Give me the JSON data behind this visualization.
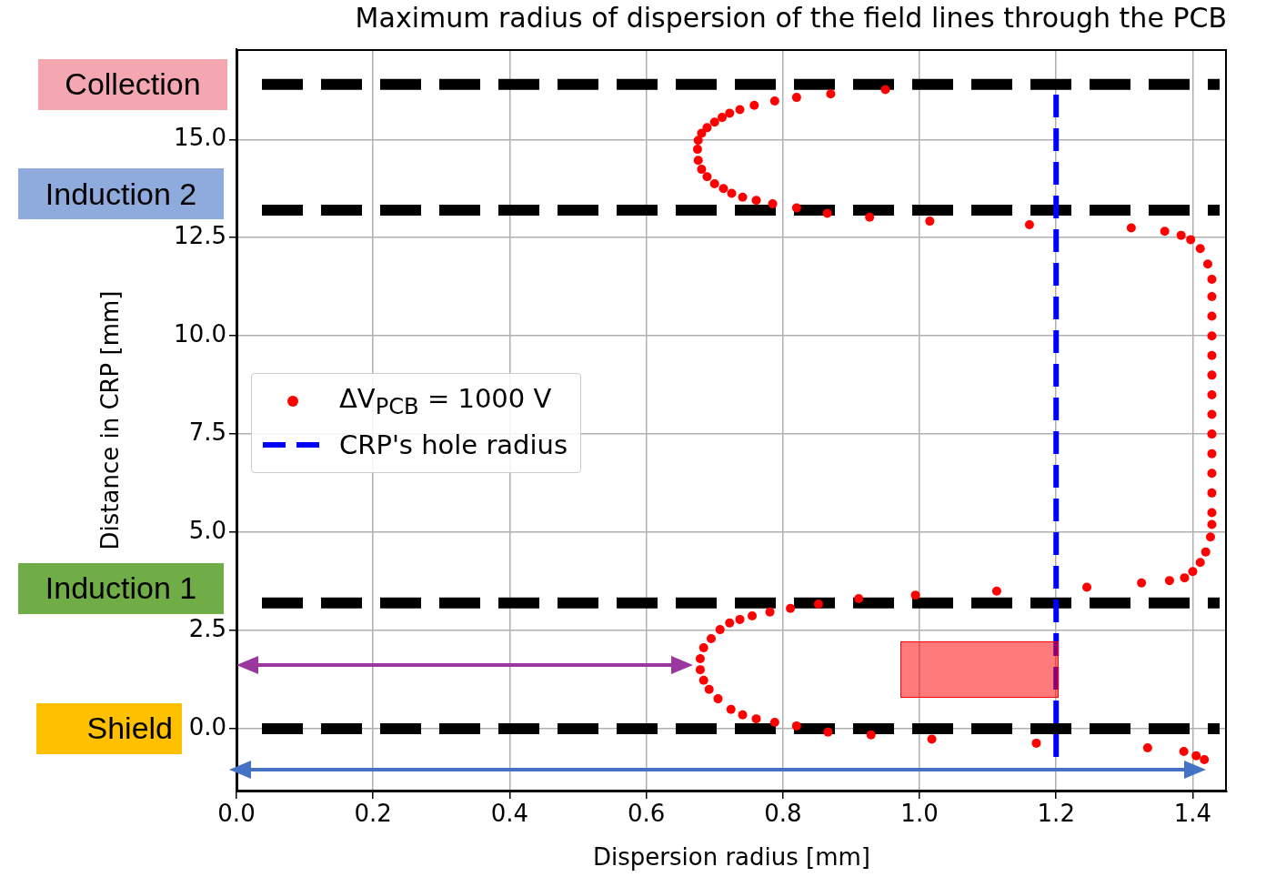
{
  "chart_data": {
    "type": "scatter",
    "title": "Maximum radius of dispersion of the field lines through the PCB",
    "xlabel": "Dispersion radius [mm]",
    "ylabel": "Distance in CRP [mm]",
    "xlim": [
      0,
      1.45
    ],
    "ylim": [
      -1.6,
      17.3
    ],
    "xticks": [
      {
        "value": 0,
        "label": "0.0"
      },
      {
        "value": 0.2,
        "label": "0.2"
      },
      {
        "value": 0.4,
        "label": "0.4"
      },
      {
        "value": 0.6,
        "label": "0.6"
      },
      {
        "value": 0.8,
        "label": "0.8"
      },
      {
        "value": 1,
        "label": "1.0"
      },
      {
        "value": 1.2,
        "label": "1.2"
      },
      {
        "value": 1.4,
        "label": "1.4"
      }
    ],
    "yticks": [
      {
        "value": 0,
        "label": "0.0"
      },
      {
        "value": 2.5,
        "label": "2.5"
      },
      {
        "value": 5,
        "label": "5.0"
      },
      {
        "value": 7.5,
        "label": "7.5"
      },
      {
        "value": 10,
        "label": "10.0"
      },
      {
        "value": 12.5,
        "label": "12.5"
      },
      {
        "value": 15,
        "label": "15.0"
      }
    ],
    "grid": true,
    "legend": "left",
    "ref_lines": [
      {
        "axis": "y",
        "value": 16.4,
        "label": "Collection",
        "color": "#000000",
        "line_style": "dashed"
      },
      {
        "axis": "y",
        "value": 13.2,
        "label": "Induction 2",
        "color": "#000000",
        "line_style": "dashed"
      },
      {
        "axis": "y",
        "value": 3.2,
        "label": "Induction 1",
        "color": "#000000",
        "line_style": "dashed"
      },
      {
        "axis": "y",
        "value": 0,
        "label": "Shield",
        "color": "#000000",
        "line_style": "dashed"
      }
    ],
    "series": [
      {
        "name": "ΔV$_{PCB}$ = 1000 V",
        "type": "scatter",
        "color": "#ff0000",
        "marker": "circle",
        "x": [
          0.95,
          0.87,
          0.82,
          0.788,
          0.758,
          0.737,
          0.722,
          0.711,
          0.7,
          0.689,
          0.681,
          0.676,
          0.675,
          0.676,
          0.681,
          0.689,
          0.7,
          0.713,
          0.725,
          0.741,
          0.761,
          0.785,
          0.82,
          0.865,
          0.927,
          1.015,
          1.161,
          1.31,
          1.359,
          1.383,
          1.397,
          1.411,
          1.422,
          1.428,
          1.428,
          1.428,
          1.428,
          1.428,
          1.428,
          1.428,
          1.428,
          1.428,
          1.428,
          1.428,
          1.428,
          1.428,
          1.428,
          1.426,
          1.419,
          1.411,
          1.4,
          1.388,
          1.366,
          1.325,
          1.245,
          1.113,
          0.994,
          0.911,
          0.852,
          0.811,
          0.781,
          0.755,
          0.737,
          0.722,
          0.708,
          0.695,
          0.684,
          0.679,
          0.679,
          0.684,
          0.692,
          0.705,
          0.724,
          0.741,
          0.761,
          0.788,
          0.82,
          0.866,
          0.929,
          1.018,
          1.171,
          1.334,
          1.387,
          1.405,
          1.417
        ],
        "values": [
          16.27,
          16.16,
          16.07,
          15.98,
          15.87,
          15.76,
          15.67,
          15.56,
          15.44,
          15.3,
          15.16,
          14.98,
          14.75,
          14.47,
          14.24,
          14.05,
          13.87,
          13.75,
          13.63,
          13.53,
          13.45,
          13.36,
          13.26,
          13.12,
          13.02,
          12.92,
          12.83,
          12.75,
          12.66,
          12.56,
          12.45,
          12.22,
          11.83,
          11.44,
          11.0,
          10.5,
          10.0,
          9.5,
          9.0,
          8.5,
          8.0,
          7.5,
          7.0,
          6.5,
          6.0,
          5.5,
          5.2,
          4.88,
          4.5,
          4.23,
          4.0,
          3.84,
          3.77,
          3.71,
          3.6,
          3.5,
          3.4,
          3.31,
          3.17,
          3.06,
          2.97,
          2.87,
          2.78,
          2.69,
          2.52,
          2.29,
          2.06,
          1.78,
          1.5,
          1.23,
          1.0,
          0.76,
          0.49,
          0.35,
          0.25,
          0.16,
          0.07,
          -0.09,
          -0.16,
          -0.27,
          -0.37,
          -0.49,
          -0.58,
          -0.69,
          -0.79
        ]
      },
      {
        "name": "CRP's hole radius",
        "type": "line",
        "color": "#0000ff",
        "line_style": "dashed",
        "marker": "none",
        "x": [
          1.2,
          1.2
        ],
        "values": [
          -0.72,
          16.27
        ]
      }
    ]
  }
}
